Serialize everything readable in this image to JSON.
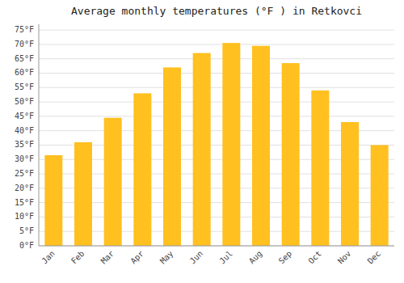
{
  "chart_data": {
    "type": "bar",
    "title": "Average monthly temperatures (°F ) in Retkovci",
    "categories": [
      "Jan",
      "Feb",
      "Mar",
      "Apr",
      "May",
      "Jun",
      "Jul",
      "Aug",
      "Sep",
      "Oct",
      "Nov",
      "Dec"
    ],
    "values": [
      31.5,
      36.0,
      44.5,
      53.0,
      62.0,
      67.0,
      70.5,
      69.5,
      63.5,
      54.0,
      43.0,
      35.0
    ],
    "color": "#FFC020",
    "ylim": [
      0,
      77
    ],
    "yticks": [
      {
        "value": 0,
        "label": "0°F"
      },
      {
        "value": 5,
        "label": "5°F"
      },
      {
        "value": 10,
        "label": "10°F"
      },
      {
        "value": 15,
        "label": "15°F"
      },
      {
        "value": 20,
        "label": "20°F"
      },
      {
        "value": 25,
        "label": "25°F"
      },
      {
        "value": 30,
        "label": "30°F"
      },
      {
        "value": 35,
        "label": "35°F"
      },
      {
        "value": 40,
        "label": "40°F"
      },
      {
        "value": 45,
        "label": "45°F"
      },
      {
        "value": 50,
        "label": "50°F"
      },
      {
        "value": 55,
        "label": "55°F"
      },
      {
        "value": 60,
        "label": "60°F"
      },
      {
        "value": 65,
        "label": "65°F"
      },
      {
        "value": 70,
        "label": "70°F"
      },
      {
        "value": 75,
        "label": "75°F"
      }
    ],
    "grid": true
  }
}
